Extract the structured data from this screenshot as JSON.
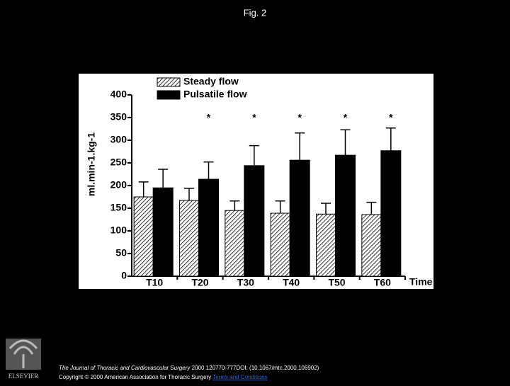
{
  "page_title": "Fig. 2",
  "chart_data": {
    "type": "bar",
    "y_label": "ml.min-1.kg-1",
    "x_label": "Time",
    "categories": [
      "T10",
      "T20",
      "T30",
      "T40",
      "T50",
      "T60"
    ],
    "series": [
      {
        "name": "Steady flow",
        "color": "#000000",
        "hatch": true,
        "values": [
          175,
          167,
          145,
          139,
          137,
          136
        ],
        "errors": [
          33,
          27,
          21,
          27,
          24,
          27
        ]
      },
      {
        "name": "Pulsatile flow",
        "color": "#000000",
        "hatch": false,
        "values": [
          195,
          214,
          244,
          256,
          267,
          277
        ],
        "errors": [
          41,
          38,
          44,
          60,
          56,
          50
        ]
      }
    ],
    "annotations": [
      {
        "text": "*",
        "x": "T20"
      },
      {
        "text": "*",
        "x": "T30"
      },
      {
        "text": "*",
        "x": "T40"
      },
      {
        "text": "*",
        "x": "T50"
      },
      {
        "text": "*",
        "x": "T60"
      }
    ],
    "ylim": [
      0,
      400
    ],
    "yticks": [
      0,
      50,
      100,
      150,
      200,
      250,
      300,
      350,
      400
    ],
    "legend": "top-left"
  },
  "footer": {
    "journal": "The Journal of Thoracic and Cardiovascular Surgery",
    "citation": " 2000 120770-777DOI: (10.1067/mtc.2000.106902)",
    "copyright": "Copyright © 2000 American Association for Thoracic Surgery ",
    "link": "Terms and Conditions"
  },
  "publisher": "ELSEVIER"
}
